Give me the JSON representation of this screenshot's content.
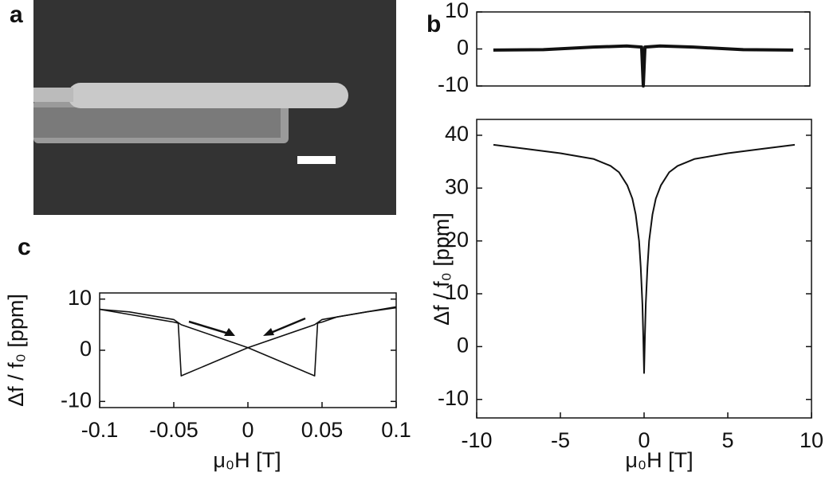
{
  "image_panel": {
    "label": "a"
  },
  "chart_data": [
    {
      "type": "line",
      "panel_label": "b",
      "xlim": [
        -10,
        10
      ],
      "ylim": [
        -10,
        10
      ],
      "yticks": [
        -10,
        0,
        10
      ],
      "x": [
        -9,
        -6,
        -3,
        -1,
        -0.1,
        0,
        0.1,
        1,
        3,
        6,
        9
      ],
      "series": [
        {
          "color": "#111111",
          "values": [
            -0.3,
            -0.2,
            0.5,
            0.8,
            0.5,
            -10,
            0.5,
            0.8,
            0.5,
            -0.2,
            -0.3
          ]
        }
      ]
    },
    {
      "type": "line",
      "xlim": [
        -10,
        10
      ],
      "ylim": [
        -13.5,
        43
      ],
      "yticks": [
        -10,
        0,
        10,
        20,
        30,
        40
      ],
      "xticks": [
        -10,
        -5,
        0,
        5,
        10
      ],
      "xlabel": "μ₀H [T]",
      "ylabel": "Δf / f₀ [ppm]",
      "x": [
        -9,
        -7,
        -5,
        -3,
        -2,
        -1.5,
        -1,
        -0.7,
        -0.5,
        -0.3,
        -0.2,
        -0.1,
        -0.05,
        0,
        0.05,
        0.1,
        0.2,
        0.3,
        0.5,
        0.7,
        1,
        1.5,
        2,
        3,
        5,
        7,
        9
      ],
      "series": [
        {
          "color": "#111111",
          "values": [
            38.2,
            37.4,
            36.6,
            35.5,
            34.2,
            33,
            30.5,
            28,
            25,
            20,
            15,
            8,
            2,
            -5,
            2,
            8,
            15,
            20,
            25,
            28,
            30.5,
            33,
            34.2,
            35.5,
            36.6,
            37.4,
            38.2
          ]
        }
      ]
    },
    {
      "type": "line",
      "panel_label": "c",
      "xlim": [
        -0.1,
        0.1
      ],
      "ylim": [
        -11.2,
        11.2
      ],
      "yticks": [
        -10,
        0,
        10
      ],
      "xticks": [
        -0.1,
        -0.05,
        0,
        0.05,
        0.1
      ],
      "xlabel": "μ₀H [T]",
      "ylabel": "Δf / f₀ [ppm]",
      "series": [
        {
          "color": "#111111",
          "x": [
            -0.1,
            -0.08,
            -0.06,
            -0.05,
            -0.047,
            -0.045,
            0,
            0.045,
            0.05,
            0.06,
            0.08,
            0.1
          ],
          "values": [
            8,
            7,
            6,
            5.5,
            5.3,
            -5,
            0.5,
            5,
            6,
            6.5,
            7.5,
            8.3
          ]
        },
        {
          "color": "#111111",
          "x": [
            0.1,
            0.08,
            0.06,
            0.05,
            0.047,
            0.045,
            0,
            -0.045,
            -0.05,
            -0.06,
            -0.08,
            -0.1
          ],
          "values": [
            8.5,
            7.5,
            6.5,
            5.5,
            5.3,
            -5,
            0.5,
            5,
            6,
            6.5,
            7.5,
            8
          ]
        }
      ]
    }
  ]
}
